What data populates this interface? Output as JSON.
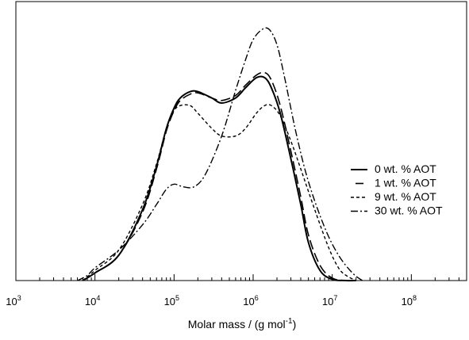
{
  "chart_data": {
    "type": "line",
    "xlabel": "Molar mass / (g mol",
    "xlabel_sup": "-1",
    "xlabel_end": ")",
    "ylabel": "",
    "xscale": "log",
    "xlim": [
      1000,
      500000000
    ],
    "ylim": [
      0,
      1.1
    ],
    "grid": false,
    "legend_position": "right",
    "x_ticks": [
      {
        "value": 1000,
        "base": "10",
        "exp": "3"
      },
      {
        "value": 10000,
        "base": "10",
        "exp": "4"
      },
      {
        "value": 100000,
        "base": "10",
        "exp": "5"
      },
      {
        "value": 1000000,
        "base": "10",
        "exp": "6"
      },
      {
        "value": 10000000,
        "base": "10",
        "exp": "7"
      },
      {
        "value": 100000000,
        "base": "10",
        "exp": "8"
      }
    ],
    "series": [
      {
        "name": "0 wt. % AOT",
        "dash": "",
        "width": 2,
        "x": [
          7000,
          10000,
          20000,
          40000,
          60000,
          80000,
          100000,
          120000,
          160000,
          200000,
          300000,
          400000,
          600000,
          800000,
          1100000,
          1400000,
          1700000,
          2200000,
          3000000,
          4000000,
          5000000,
          7000000,
          10000000,
          15000000,
          20000000
        ],
        "y": [
          0.0,
          0.03,
          0.1,
          0.28,
          0.45,
          0.6,
          0.68,
          0.72,
          0.745,
          0.745,
          0.72,
          0.7,
          0.72,
          0.76,
          0.8,
          0.8,
          0.76,
          0.66,
          0.48,
          0.3,
          0.15,
          0.04,
          0.005,
          0.0,
          0.0
        ]
      },
      {
        "name": "1 wt. % AOT",
        "dash": "12,5",
        "width": 1.6,
        "x": [
          7000,
          10000,
          20000,
          40000,
          60000,
          80000,
          100000,
          120000,
          160000,
          200000,
          300000,
          400000,
          600000,
          800000,
          1100000,
          1400000,
          1700000,
          2200000,
          3000000,
          4000000,
          5000000,
          7000000,
          10000000,
          15000000,
          20000000
        ],
        "y": [
          0.0,
          0.03,
          0.1,
          0.27,
          0.44,
          0.59,
          0.67,
          0.71,
          0.735,
          0.74,
          0.72,
          0.71,
          0.73,
          0.77,
          0.81,
          0.82,
          0.79,
          0.69,
          0.51,
          0.33,
          0.18,
          0.06,
          0.01,
          0.0,
          0.0
        ]
      },
      {
        "name": "9 wt. % AOT",
        "dash": "4,3",
        "width": 1.4,
        "x": [
          7000,
          10000,
          20000,
          40000,
          60000,
          80000,
          100000,
          120000,
          160000,
          200000,
          300000,
          400000,
          600000,
          800000,
          1100000,
          1400000,
          1700000,
          2200000,
          3000000,
          4000000,
          6000000,
          9000000,
          12000000,
          15000000,
          20000000
        ],
        "y": [
          0.0,
          0.04,
          0.12,
          0.3,
          0.46,
          0.6,
          0.67,
          0.69,
          0.69,
          0.66,
          0.6,
          0.57,
          0.57,
          0.6,
          0.66,
          0.69,
          0.69,
          0.65,
          0.55,
          0.44,
          0.28,
          0.13,
          0.05,
          0.02,
          0.0
        ]
      },
      {
        "name": "30 wt. % AOT",
        "dash": "9,3,2,3",
        "width": 1.4,
        "x": [
          6000,
          8000,
          10000,
          20000,
          40000,
          60000,
          80000,
          100000,
          130000,
          180000,
          250000,
          400000,
          600000,
          800000,
          1000000,
          1300000,
          1600000,
          2000000,
          2500000,
          3500000,
          5000000,
          8000000,
          12000000,
          18000000,
          24000000
        ],
        "y": [
          0.0,
          0.02,
          0.05,
          0.12,
          0.22,
          0.3,
          0.36,
          0.38,
          0.37,
          0.37,
          0.42,
          0.57,
          0.75,
          0.87,
          0.95,
          0.99,
          0.99,
          0.93,
          0.8,
          0.58,
          0.39,
          0.21,
          0.1,
          0.03,
          0.0
        ]
      }
    ]
  }
}
